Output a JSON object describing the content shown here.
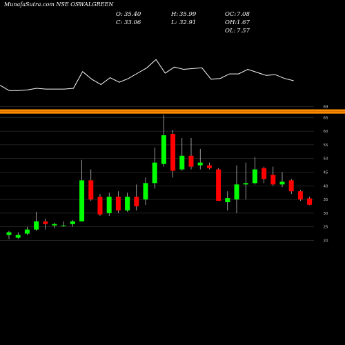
{
  "header": {
    "title": "MunafaSutra.com NSE OSWALGREEN"
  },
  "ohlc": {
    "o_label": "O:",
    "o_value": "35.40",
    "h_label": "H:",
    "h_value": "35.99",
    "c_label": "C:",
    "c_value": "33.06",
    "l_label": "L:",
    "l_value": "32.91",
    "oc_label": "OC:",
    "oc_value": "7.08",
    "oh_label": "OH:",
    "oh_value": "1.67",
    "ol_label": "OL:",
    "ol_value": "7.57"
  },
  "colors": {
    "background": "#000000",
    "up": "#00ff00",
    "down": "#ff0000",
    "wick": "#ffffff",
    "band": "#ff8c00",
    "grid": "#444444",
    "line": "#ffffff"
  },
  "chart_data": {
    "type": "candlestick",
    "y_axis": {
      "ticks": [
        20,
        25,
        30,
        35,
        40,
        45,
        50,
        55,
        60,
        65,
        69
      ],
      "tick_labels": [
        "20",
        "25",
        "30",
        "35",
        "40",
        "45",
        "50",
        "55",
        "60",
        "65",
        "69"
      ],
      "range": [
        19,
        70
      ],
      "side": "right",
      "grid": true
    },
    "horizontal_bands": [
      67.6,
      66.8
    ],
    "candles": [
      {
        "o": 22.0,
        "h": 23.5,
        "l": 20.5,
        "c": 23.0
      },
      {
        "o": 21.0,
        "h": 23.0,
        "l": 20.5,
        "c": 22.0
      },
      {
        "o": 22.5,
        "h": 25.0,
        "l": 22.0,
        "c": 24.0
      },
      {
        "o": 24.0,
        "h": 30.5,
        "l": 23.5,
        "c": 27.0
      },
      {
        "o": 27.0,
        "h": 28.0,
        "l": 24.0,
        "c": 26.0
      },
      {
        "o": 25.5,
        "h": 26.5,
        "l": 24.5,
        "c": 26.0
      },
      {
        "o": 25.5,
        "h": 27.0,
        "l": 25.0,
        "c": 25.5
      },
      {
        "o": 26.0,
        "h": 27.5,
        "l": 25.0,
        "c": 27.0
      },
      {
        "o": 27.0,
        "h": 49.5,
        "l": 27.0,
        "c": 42.0
      },
      {
        "o": 42.0,
        "h": 46.0,
        "l": 34.5,
        "c": 35.0
      },
      {
        "o": 36.0,
        "h": 37.0,
        "l": 29.0,
        "c": 29.5
      },
      {
        "o": 30.0,
        "h": 37.5,
        "l": 29.0,
        "c": 36.0
      },
      {
        "o": 36.0,
        "h": 38.0,
        "l": 30.0,
        "c": 31.0
      },
      {
        "o": 31.0,
        "h": 37.5,
        "l": 30.5,
        "c": 36.0
      },
      {
        "o": 36.0,
        "h": 40.5,
        "l": 31.0,
        "c": 32.5
      },
      {
        "o": 35.0,
        "h": 43.0,
        "l": 33.0,
        "c": 41.0
      },
      {
        "o": 41.0,
        "h": 54.0,
        "l": 39.0,
        "c": 48.5
      },
      {
        "o": 48.0,
        "h": 66.0,
        "l": 47.0,
        "c": 58.5
      },
      {
        "o": 59.0,
        "h": 60.5,
        "l": 43.0,
        "c": 45.5
      },
      {
        "o": 46.0,
        "h": 57.5,
        "l": 45.5,
        "c": 51.0
      },
      {
        "o": 51.0,
        "h": 57.5,
        "l": 46.0,
        "c": 47.0
      },
      {
        "o": 47.5,
        "h": 53.5,
        "l": 46.0,
        "c": 48.5
      },
      {
        "o": 47.5,
        "h": 48.5,
        "l": 46.0,
        "c": 46.5
      },
      {
        "o": 46.0,
        "h": 46.5,
        "l": 34.5,
        "c": 34.5
      },
      {
        "o": 34.0,
        "h": 38.0,
        "l": 31.0,
        "c": 35.5
      },
      {
        "o": 35.0,
        "h": 47.5,
        "l": 30.0,
        "c": 40.5
      },
      {
        "o": 40.5,
        "h": 48.5,
        "l": 35.0,
        "c": 41.0
      },
      {
        "o": 41.0,
        "h": 50.5,
        "l": 40.5,
        "c": 46.0
      },
      {
        "o": 46.5,
        "h": 47.0,
        "l": 41.0,
        "c": 42.5
      },
      {
        "o": 44.0,
        "h": 47.0,
        "l": 40.0,
        "c": 40.5
      },
      {
        "o": 40.5,
        "h": 45.0,
        "l": 39.5,
        "c": 41.5
      },
      {
        "o": 42.0,
        "h": 42.5,
        "l": 37.0,
        "c": 38.0
      },
      {
        "o": 38.0,
        "h": 38.5,
        "l": 34.5,
        "c": 35.0
      },
      {
        "o": 35.4,
        "h": 35.99,
        "l": 32.91,
        "c": 33.06
      }
    ],
    "line_series": [
      24,
      17,
      17,
      18,
      20,
      19,
      19,
      19,
      20,
      42,
      32,
      25,
      34,
      28,
      33,
      40,
      47,
      58,
      40,
      48,
      45,
      46,
      47,
      32,
      33,
      39,
      39,
      45,
      41,
      37,
      38,
      33,
      30
    ]
  }
}
